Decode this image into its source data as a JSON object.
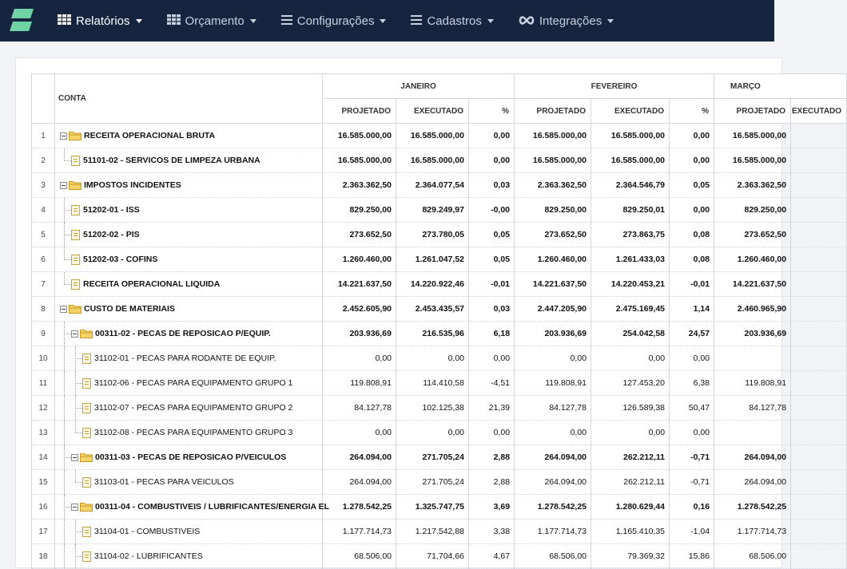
{
  "nav": {
    "items": [
      {
        "label": "Relatórios",
        "icon": "grid-icon",
        "active": true
      },
      {
        "label": "Orçamento",
        "icon": "grid-icon",
        "active": false
      },
      {
        "label": "Configurações",
        "icon": "bars-icon",
        "active": false
      },
      {
        "label": "Cadastros",
        "icon": "bars-icon",
        "active": false
      },
      {
        "label": "Integrações",
        "icon": "infinity-icon",
        "active": false
      }
    ]
  },
  "colors": {
    "navbar": "#15253f",
    "logo": "#6fd3a4",
    "folder": "#f0c24a"
  },
  "table": {
    "conta_header": "CONTA",
    "months": [
      "JANEIRO",
      "FEVEREIRO",
      "MARÇO"
    ],
    "subheaders": [
      "PROJETADO",
      "EXECUTADO",
      "%"
    ],
    "rows": [
      {
        "n": "1",
        "level": 0,
        "type": "folder",
        "bold": true,
        "label": "RECEITA OPERACIONAL BRUTA",
        "jan": [
          "16.585.000,00",
          "16.585.000,00",
          "0,00"
        ],
        "fev": [
          "16.585.000,00",
          "16.585.000,00",
          "0,00"
        ],
        "mar": "16.585.000,00"
      },
      {
        "n": "2",
        "level": 1,
        "type": "doc",
        "last": true,
        "bold": true,
        "label": "51101-02 - SERVICOS DE LIMPEZA URBANA",
        "jan": [
          "16.585.000,00",
          "16.585.000,00",
          "0,00"
        ],
        "fev": [
          "16.585.000,00",
          "16.585.000,00",
          "0,00"
        ],
        "mar": "16.585.000,00"
      },
      {
        "n": "3",
        "level": 0,
        "type": "folder",
        "bold": true,
        "label": "IMPOSTOS INCIDENTES",
        "jan": [
          "2.363.362,50",
          "2.364.077,54",
          "0,03"
        ],
        "fev": [
          "2.363.362,50",
          "2.364.546,79",
          "0,05"
        ],
        "mar": "2.363.362,50"
      },
      {
        "n": "4",
        "level": 1,
        "type": "doc",
        "bold": true,
        "label": "51202-01 - ISS",
        "jan": [
          "829.250,00",
          "829.249,97",
          "-0,00"
        ],
        "fev": [
          "829.250,00",
          "829.250,01",
          "0,00"
        ],
        "mar": "829.250,00"
      },
      {
        "n": "5",
        "level": 1,
        "type": "doc",
        "bold": true,
        "label": "51202-02 - PIS",
        "jan": [
          "273.652,50",
          "273.780,05",
          "0,05"
        ],
        "fev": [
          "273.652,50",
          "273.863,75",
          "0,08"
        ],
        "mar": "273.652,50"
      },
      {
        "n": "6",
        "level": 1,
        "type": "doc",
        "last": true,
        "bold": true,
        "label": "51202-03 - COFINS",
        "jan": [
          "1.260.460,00",
          "1.261.047,52",
          "0,05"
        ],
        "fev": [
          "1.260.460,00",
          "1.261.433,03",
          "0,08"
        ],
        "mar": "1.260.460,00"
      },
      {
        "n": "7",
        "level": 0,
        "type": "doc",
        "bold": true,
        "label": "RECEITA OPERACIONAL LIQUIDA",
        "jan": [
          "14.221.637,50",
          "14.220.922,46",
          "-0,01"
        ],
        "fev": [
          "14.221.637,50",
          "14.220.453,21",
          "-0,01"
        ],
        "mar": "14.221.637,50"
      },
      {
        "n": "8",
        "level": 0,
        "type": "folder",
        "bold": true,
        "label": "CUSTO DE MATERIAIS",
        "jan": [
          "2.452.605,90",
          "2.453.435,57",
          "0,03"
        ],
        "fev": [
          "2.447.205,90",
          "2.475.169,45",
          "1,14"
        ],
        "mar": "2.460.965,90"
      },
      {
        "n": "9",
        "level": 1,
        "type": "folder",
        "bold": true,
        "label": "00311-02 - PECAS DE REPOSICAO P/EQUIP.",
        "jan": [
          "203.936,69",
          "216.535,96",
          "6,18"
        ],
        "fev": [
          "203.936,69",
          "254.042,58",
          "24,57"
        ],
        "mar": "203.936,69"
      },
      {
        "n": "10",
        "level": 2,
        "type": "doc",
        "bold": false,
        "label": "31102-01 - PECAS PARA RODANTE DE EQUIP.",
        "jan": [
          "0,00",
          "0,00",
          "0,00"
        ],
        "fev": [
          "0,00",
          "0,00",
          "0,00"
        ],
        "mar": ""
      },
      {
        "n": "11",
        "level": 2,
        "type": "doc",
        "bold": false,
        "label": "31102-06 - PECAS PARA EQUIPAMENTO GRUPO 1",
        "jan": [
          "119.808,91",
          "114.410,58",
          "-4,51"
        ],
        "fev": [
          "119.808,91",
          "127.453,20",
          "6,38"
        ],
        "mar": "119.808,91"
      },
      {
        "n": "12",
        "level": 2,
        "type": "doc",
        "bold": false,
        "label": "31102-07 - PECAS PARA EQUIPAMENTO GRUPO 2",
        "jan": [
          "84.127,78",
          "102.125,38",
          "21,39"
        ],
        "fev": [
          "84.127,78",
          "126.589,38",
          "50,47"
        ],
        "mar": "84.127,78"
      },
      {
        "n": "13",
        "level": 2,
        "type": "doc",
        "last": true,
        "bold": false,
        "label": "31102-08 - PECAS PARA EQUIPAMENTO GRUPO 3",
        "jan": [
          "0,00",
          "0,00",
          "0,00"
        ],
        "fev": [
          "0,00",
          "0,00",
          "0,00"
        ],
        "mar": ""
      },
      {
        "n": "14",
        "level": 1,
        "type": "folder",
        "bold": true,
        "label": "00311-03 - PECAS DE REPOSICAO P/VEICULOS",
        "jan": [
          "264.094,00",
          "271.705,24",
          "2,88"
        ],
        "fev": [
          "264.094,00",
          "262.212,11",
          "-0,71"
        ],
        "mar": "264.094,00"
      },
      {
        "n": "15",
        "level": 2,
        "type": "doc",
        "last": true,
        "bold": false,
        "label": "31103-01 - PECAS PARA VEICULOS",
        "jan": [
          "264.094,00",
          "271.705,24",
          "2,88"
        ],
        "fev": [
          "264.094,00",
          "262.212,11",
          "-0,71"
        ],
        "mar": "264.094,00"
      },
      {
        "n": "16",
        "level": 1,
        "type": "folder",
        "bold": true,
        "label": "00311-04 - COMBUSTIVEIS / LUBRIFICANTES/ENERGIA EL",
        "jan": [
          "1.278.542,25",
          "1.325.747,75",
          "3,69"
        ],
        "fev": [
          "1.278.542,25",
          "1.280.629,44",
          "0,16"
        ],
        "mar": "1.278.542,25"
      },
      {
        "n": "17",
        "level": 2,
        "type": "doc",
        "bold": false,
        "label": "31104-01 - COMBUSTIVEIS",
        "jan": [
          "1.177.714,73",
          "1.217.542,88",
          "3,38"
        ],
        "fev": [
          "1.177.714,73",
          "1.165.410,35",
          "-1,04"
        ],
        "mar": "1.177.714,73"
      },
      {
        "n": "18",
        "level": 2,
        "type": "doc",
        "bold": false,
        "label": "31104-02 - LUBRIFICANTES",
        "jan": [
          "68.506,00",
          "71.704,66",
          "4,67"
        ],
        "fev": [
          "68.506,00",
          "79.369,32",
          "15,86"
        ],
        "mar": "68.506,00"
      }
    ]
  }
}
